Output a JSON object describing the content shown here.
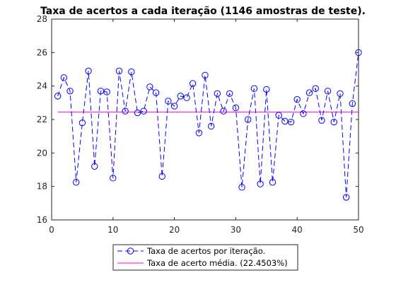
{
  "chart_data": {
    "type": "line",
    "title": "Taxa de acertos a cada iteração (1146 amostras de teste).",
    "xlabel": "",
    "ylabel": "",
    "xlim": [
      0,
      50
    ],
    "ylim": [
      16,
      28
    ],
    "xticks": [
      "0",
      "10",
      "20",
      "30",
      "40",
      "50"
    ],
    "yticks": [
      "16",
      "18",
      "20",
      "22",
      "24",
      "26",
      "28"
    ],
    "grid": false,
    "legend_position": "bottom-center",
    "series": [
      {
        "name": "Taxa de acertos por iteração.",
        "style": "dashed-circle-markers",
        "color": "#0000ff",
        "x": [
          1,
          2,
          3,
          4,
          5,
          6,
          7,
          8,
          9,
          10,
          11,
          12,
          13,
          14,
          15,
          16,
          17,
          18,
          19,
          20,
          21,
          22,
          23,
          24,
          25,
          26,
          27,
          28,
          29,
          30,
          31,
          32,
          33,
          34,
          35,
          36,
          37,
          38,
          39,
          40,
          41,
          42,
          43,
          44,
          45,
          46,
          47,
          48,
          49,
          50
        ],
        "values": [
          23.4,
          24.5,
          23.7,
          18.25,
          21.8,
          24.9,
          19.2,
          23.7,
          23.65,
          18.5,
          24.9,
          22.5,
          24.85,
          22.4,
          22.5,
          23.95,
          23.6,
          18.6,
          23.1,
          22.8,
          23.4,
          23.3,
          24.15,
          21.2,
          24.65,
          21.6,
          23.55,
          22.5,
          23.55,
          22.7,
          17.95,
          22.0,
          23.85,
          18.15,
          23.8,
          18.25,
          22.25,
          21.9,
          21.85,
          23.2,
          22.35,
          23.6,
          23.85,
          21.95,
          23.7,
          21.85,
          23.55,
          17.35,
          22.95,
          26.0
        ]
      },
      {
        "name": "Taxa de acerto média. (22.4503%)",
        "style": "solid",
        "color": "#ff00ff",
        "x": [
          1,
          50
        ],
        "values": [
          22.4503,
          22.4503
        ]
      }
    ]
  }
}
